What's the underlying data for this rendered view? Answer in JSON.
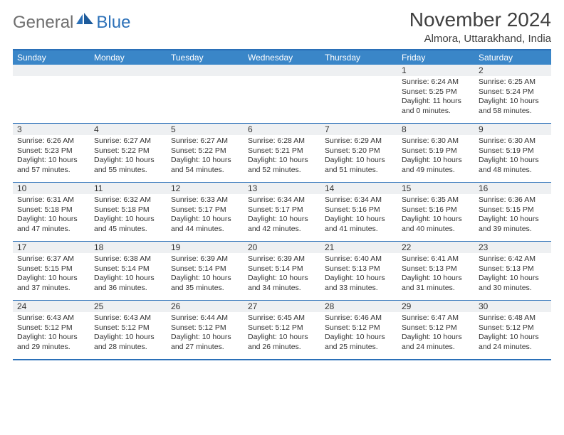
{
  "logo": {
    "general": "General",
    "blue": "Blue"
  },
  "header": {
    "title": "November 2024",
    "location": "Almora, Uttarakhand, India"
  },
  "colors": {
    "brand": "#2b70b8",
    "header_bg": "#3a86c8",
    "daynum_bg": "#eef0f2",
    "text": "#333333",
    "title_text": "#404040"
  },
  "daynames": [
    "Sunday",
    "Monday",
    "Tuesday",
    "Wednesday",
    "Thursday",
    "Friday",
    "Saturday"
  ],
  "weeks": [
    [
      {
        "num": "",
        "sunrise": "",
        "sunset": "",
        "daylight": ""
      },
      {
        "num": "",
        "sunrise": "",
        "sunset": "",
        "daylight": ""
      },
      {
        "num": "",
        "sunrise": "",
        "sunset": "",
        "daylight": ""
      },
      {
        "num": "",
        "sunrise": "",
        "sunset": "",
        "daylight": ""
      },
      {
        "num": "",
        "sunrise": "",
        "sunset": "",
        "daylight": ""
      },
      {
        "num": "1",
        "sunrise": "Sunrise: 6:24 AM",
        "sunset": "Sunset: 5:25 PM",
        "daylight": "Daylight: 11 hours and 0 minutes."
      },
      {
        "num": "2",
        "sunrise": "Sunrise: 6:25 AM",
        "sunset": "Sunset: 5:24 PM",
        "daylight": "Daylight: 10 hours and 58 minutes."
      }
    ],
    [
      {
        "num": "3",
        "sunrise": "Sunrise: 6:26 AM",
        "sunset": "Sunset: 5:23 PM",
        "daylight": "Daylight: 10 hours and 57 minutes."
      },
      {
        "num": "4",
        "sunrise": "Sunrise: 6:27 AM",
        "sunset": "Sunset: 5:22 PM",
        "daylight": "Daylight: 10 hours and 55 minutes."
      },
      {
        "num": "5",
        "sunrise": "Sunrise: 6:27 AM",
        "sunset": "Sunset: 5:22 PM",
        "daylight": "Daylight: 10 hours and 54 minutes."
      },
      {
        "num": "6",
        "sunrise": "Sunrise: 6:28 AM",
        "sunset": "Sunset: 5:21 PM",
        "daylight": "Daylight: 10 hours and 52 minutes."
      },
      {
        "num": "7",
        "sunrise": "Sunrise: 6:29 AM",
        "sunset": "Sunset: 5:20 PM",
        "daylight": "Daylight: 10 hours and 51 minutes."
      },
      {
        "num": "8",
        "sunrise": "Sunrise: 6:30 AM",
        "sunset": "Sunset: 5:19 PM",
        "daylight": "Daylight: 10 hours and 49 minutes."
      },
      {
        "num": "9",
        "sunrise": "Sunrise: 6:30 AM",
        "sunset": "Sunset: 5:19 PM",
        "daylight": "Daylight: 10 hours and 48 minutes."
      }
    ],
    [
      {
        "num": "10",
        "sunrise": "Sunrise: 6:31 AM",
        "sunset": "Sunset: 5:18 PM",
        "daylight": "Daylight: 10 hours and 47 minutes."
      },
      {
        "num": "11",
        "sunrise": "Sunrise: 6:32 AM",
        "sunset": "Sunset: 5:18 PM",
        "daylight": "Daylight: 10 hours and 45 minutes."
      },
      {
        "num": "12",
        "sunrise": "Sunrise: 6:33 AM",
        "sunset": "Sunset: 5:17 PM",
        "daylight": "Daylight: 10 hours and 44 minutes."
      },
      {
        "num": "13",
        "sunrise": "Sunrise: 6:34 AM",
        "sunset": "Sunset: 5:17 PM",
        "daylight": "Daylight: 10 hours and 42 minutes."
      },
      {
        "num": "14",
        "sunrise": "Sunrise: 6:34 AM",
        "sunset": "Sunset: 5:16 PM",
        "daylight": "Daylight: 10 hours and 41 minutes."
      },
      {
        "num": "15",
        "sunrise": "Sunrise: 6:35 AM",
        "sunset": "Sunset: 5:16 PM",
        "daylight": "Daylight: 10 hours and 40 minutes."
      },
      {
        "num": "16",
        "sunrise": "Sunrise: 6:36 AM",
        "sunset": "Sunset: 5:15 PM",
        "daylight": "Daylight: 10 hours and 39 minutes."
      }
    ],
    [
      {
        "num": "17",
        "sunrise": "Sunrise: 6:37 AM",
        "sunset": "Sunset: 5:15 PM",
        "daylight": "Daylight: 10 hours and 37 minutes."
      },
      {
        "num": "18",
        "sunrise": "Sunrise: 6:38 AM",
        "sunset": "Sunset: 5:14 PM",
        "daylight": "Daylight: 10 hours and 36 minutes."
      },
      {
        "num": "19",
        "sunrise": "Sunrise: 6:39 AM",
        "sunset": "Sunset: 5:14 PM",
        "daylight": "Daylight: 10 hours and 35 minutes."
      },
      {
        "num": "20",
        "sunrise": "Sunrise: 6:39 AM",
        "sunset": "Sunset: 5:14 PM",
        "daylight": "Daylight: 10 hours and 34 minutes."
      },
      {
        "num": "21",
        "sunrise": "Sunrise: 6:40 AM",
        "sunset": "Sunset: 5:13 PM",
        "daylight": "Daylight: 10 hours and 33 minutes."
      },
      {
        "num": "22",
        "sunrise": "Sunrise: 6:41 AM",
        "sunset": "Sunset: 5:13 PM",
        "daylight": "Daylight: 10 hours and 31 minutes."
      },
      {
        "num": "23",
        "sunrise": "Sunrise: 6:42 AM",
        "sunset": "Sunset: 5:13 PM",
        "daylight": "Daylight: 10 hours and 30 minutes."
      }
    ],
    [
      {
        "num": "24",
        "sunrise": "Sunrise: 6:43 AM",
        "sunset": "Sunset: 5:12 PM",
        "daylight": "Daylight: 10 hours and 29 minutes."
      },
      {
        "num": "25",
        "sunrise": "Sunrise: 6:43 AM",
        "sunset": "Sunset: 5:12 PM",
        "daylight": "Daylight: 10 hours and 28 minutes."
      },
      {
        "num": "26",
        "sunrise": "Sunrise: 6:44 AM",
        "sunset": "Sunset: 5:12 PM",
        "daylight": "Daylight: 10 hours and 27 minutes."
      },
      {
        "num": "27",
        "sunrise": "Sunrise: 6:45 AM",
        "sunset": "Sunset: 5:12 PM",
        "daylight": "Daylight: 10 hours and 26 minutes."
      },
      {
        "num": "28",
        "sunrise": "Sunrise: 6:46 AM",
        "sunset": "Sunset: 5:12 PM",
        "daylight": "Daylight: 10 hours and 25 minutes."
      },
      {
        "num": "29",
        "sunrise": "Sunrise: 6:47 AM",
        "sunset": "Sunset: 5:12 PM",
        "daylight": "Daylight: 10 hours and 24 minutes."
      },
      {
        "num": "30",
        "sunrise": "Sunrise: 6:48 AM",
        "sunset": "Sunset: 5:12 PM",
        "daylight": "Daylight: 10 hours and 24 minutes."
      }
    ]
  ]
}
